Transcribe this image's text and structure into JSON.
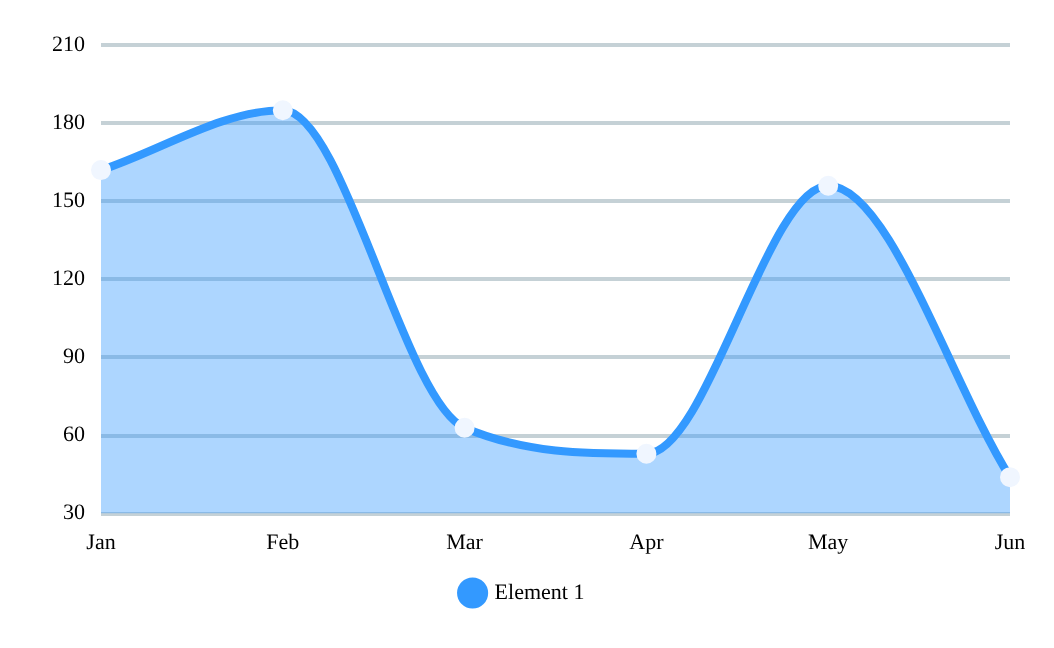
{
  "chart_data": {
    "type": "area",
    "categories": [
      "Jan",
      "Feb",
      "Mar",
      "Apr",
      "May",
      "Jun"
    ],
    "series": [
      {
        "name": "Element 1",
        "color": "#3399ff",
        "values": [
          162,
          185,
          63,
          53,
          156,
          44
        ]
      }
    ],
    "ylim": [
      30,
      210
    ],
    "yticks": [
      30,
      60,
      90,
      120,
      150,
      180,
      210
    ],
    "grid": "y",
    "legend": "bottom",
    "marker": "circle"
  }
}
